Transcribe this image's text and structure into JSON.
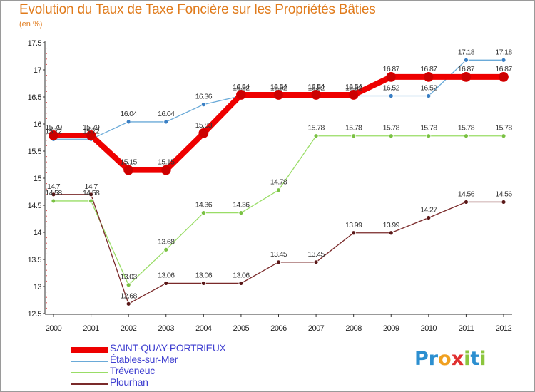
{
  "title": "Evolution du Taux de Taxe Foncière sur les Propriétés Bâties",
  "unit_label": "(en %)",
  "logo": {
    "letters": [
      "P",
      "r",
      "o",
      "x",
      "i",
      "t",
      "i"
    ],
    "colors": [
      "#2c8fd0",
      "#2c8fd0",
      "#f0a020",
      "#e03030",
      "#8cc63e",
      "#2c8fd0",
      "#8cc63e"
    ]
  },
  "chart_data": {
    "type": "line",
    "title": "Evolution du Taux de Taxe Foncière sur les Propriétés Bâties",
    "ylabel": "(en %)",
    "xlabel": "",
    "categories": [
      "2000",
      "2001",
      "2002",
      "2003",
      "2004",
      "2005",
      "2006",
      "2007",
      "2008",
      "2009",
      "2010",
      "2011",
      "2012"
    ],
    "ylim": [
      12.5,
      17.5
    ],
    "yticks": [
      "12.5",
      "13",
      "13.5",
      "14",
      "14.5",
      "15",
      "15.5",
      "16",
      "16.5",
      "17",
      "17.5"
    ],
    "grid": false,
    "legend_position": "bottom-left",
    "series": [
      {
        "name": "Étables-sur-Mer",
        "color": "#6aaad8",
        "marker": "#3a7fc4",
        "width": 1.3,
        "marker_r": 3,
        "values": [
          15.72,
          15.72,
          16.04,
          16.04,
          16.36,
          16.52,
          16.52,
          16.52,
          16.52,
          16.52,
          16.52,
          17.18,
          17.18
        ],
        "labels": [
          "15.72",
          "15.72",
          "16.04",
          "16.04",
          "16.36",
          "16.52",
          "16.52",
          "16.52",
          "16.52",
          "16.52",
          "16.52",
          "17.18",
          "17.18"
        ]
      },
      {
        "name": "Tréveneuc",
        "color": "#99dd66",
        "marker": "#7ac143",
        "width": 1.3,
        "marker_r": 3,
        "values": [
          14.58,
          14.58,
          13.03,
          13.68,
          14.36,
          14.36,
          14.78,
          15.78,
          15.78,
          15.78,
          15.78,
          15.78,
          15.78
        ],
        "labels": [
          "14.58",
          "14.58",
          "13.03",
          "13.68",
          "14.36",
          "14.36",
          "14.78",
          "15.78",
          "15.78",
          "15.78",
          "15.78",
          "15.78",
          "15.78"
        ]
      },
      {
        "name": "Plourhan",
        "color": "#7a2a2a",
        "marker": "#5a1818",
        "width": 1.3,
        "marker_r": 3,
        "values": [
          14.7,
          14.7,
          12.68,
          13.06,
          13.06,
          13.06,
          13.45,
          13.45,
          13.99,
          13.99,
          14.27,
          14.56,
          14.56
        ],
        "labels": [
          "14.7",
          "14.7",
          "12.68",
          "13.06",
          "13.06",
          "13.06",
          "13.45",
          "13.45",
          "13.99",
          "13.99",
          "14.27",
          "14.56",
          "14.56"
        ]
      },
      {
        "name": "SAINT-QUAY-PORTRIEUX",
        "color": "#ee0000",
        "marker": "#cc0000",
        "width": 8,
        "marker_r": 6.5,
        "values": [
          15.79,
          15.79,
          15.15,
          15.15,
          15.83,
          16.54,
          16.54,
          16.54,
          16.54,
          16.87,
          16.87,
          16.87,
          16.87
        ],
        "labels": [
          "15.79",
          "15.79",
          "15.15",
          "15.15",
          "15.83",
          "16.54",
          "16.54",
          "16.54",
          "16.54",
          "16.87",
          "16.87",
          "16.87",
          "16.87"
        ]
      }
    ],
    "legend": [
      "SAINT-QUAY-PORTRIEUX",
      "Étables-sur-Mer",
      "Tréveneuc",
      "Plourhan"
    ]
  }
}
